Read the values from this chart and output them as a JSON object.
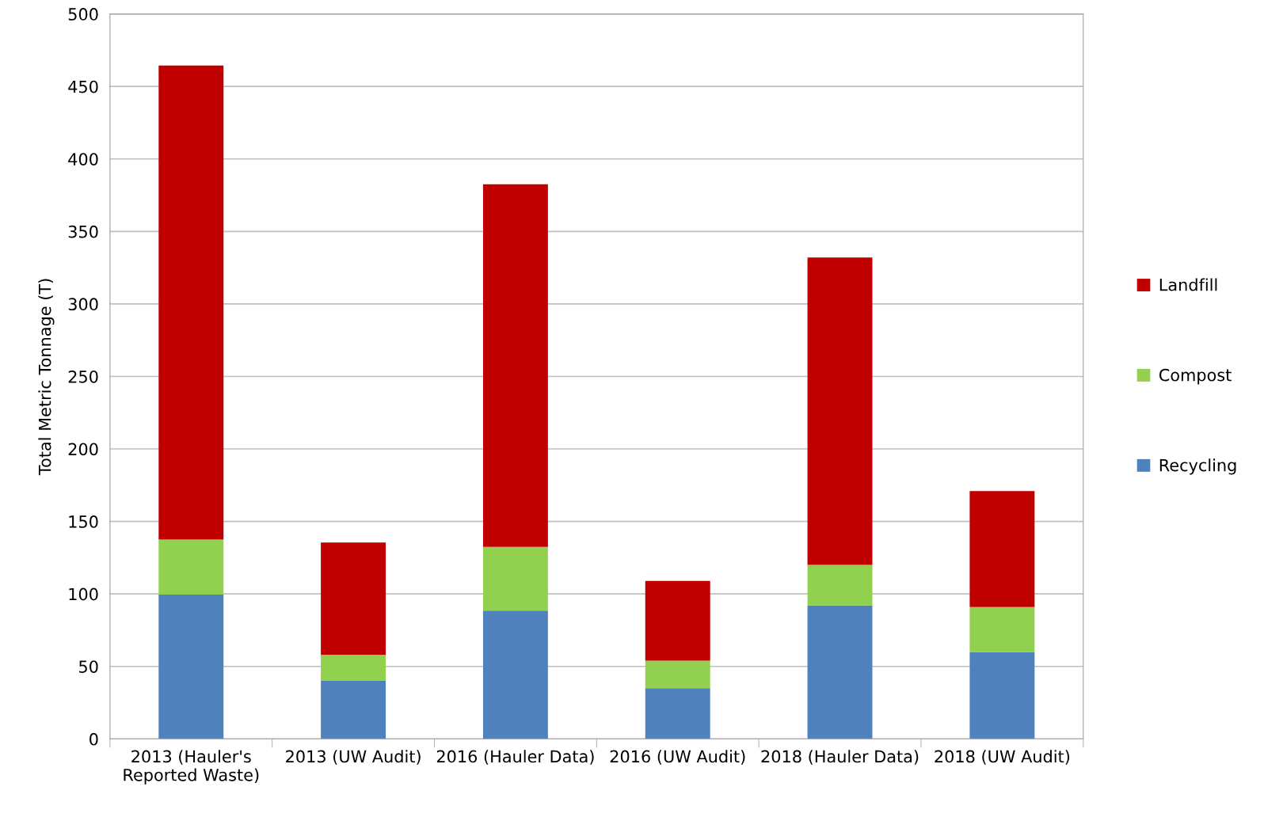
{
  "chart_data": {
    "type": "bar",
    "stacked": true,
    "categories": [
      "2013 (Hauler's\nReported Waste)",
      "2013 (UW Audit)",
      "2016 (Hauler Data)",
      "2016 (UW Audit)",
      "2018 (Hauler Data)",
      "2018 (UW Audit)"
    ],
    "series": [
      {
        "name": "Recycling",
        "color": "#4f81bd",
        "values": [
          99.5,
          40,
          88.5,
          35,
          92,
          60
        ]
      },
      {
        "name": "Compost",
        "color": "#92d050",
        "values": [
          38,
          18,
          44,
          19,
          28,
          31
        ]
      },
      {
        "name": "Landfill",
        "color": "#c00000",
        "values": [
          327,
          77.5,
          250,
          55,
          212,
          80
        ]
      }
    ],
    "ylabel": "Total Metric Tonnage (T)",
    "ylim": [
      0,
      500
    ],
    "yticks": [
      0,
      50,
      100,
      150,
      200,
      250,
      300,
      350,
      400,
      450,
      500
    ],
    "grid": "y",
    "legend": "right"
  }
}
